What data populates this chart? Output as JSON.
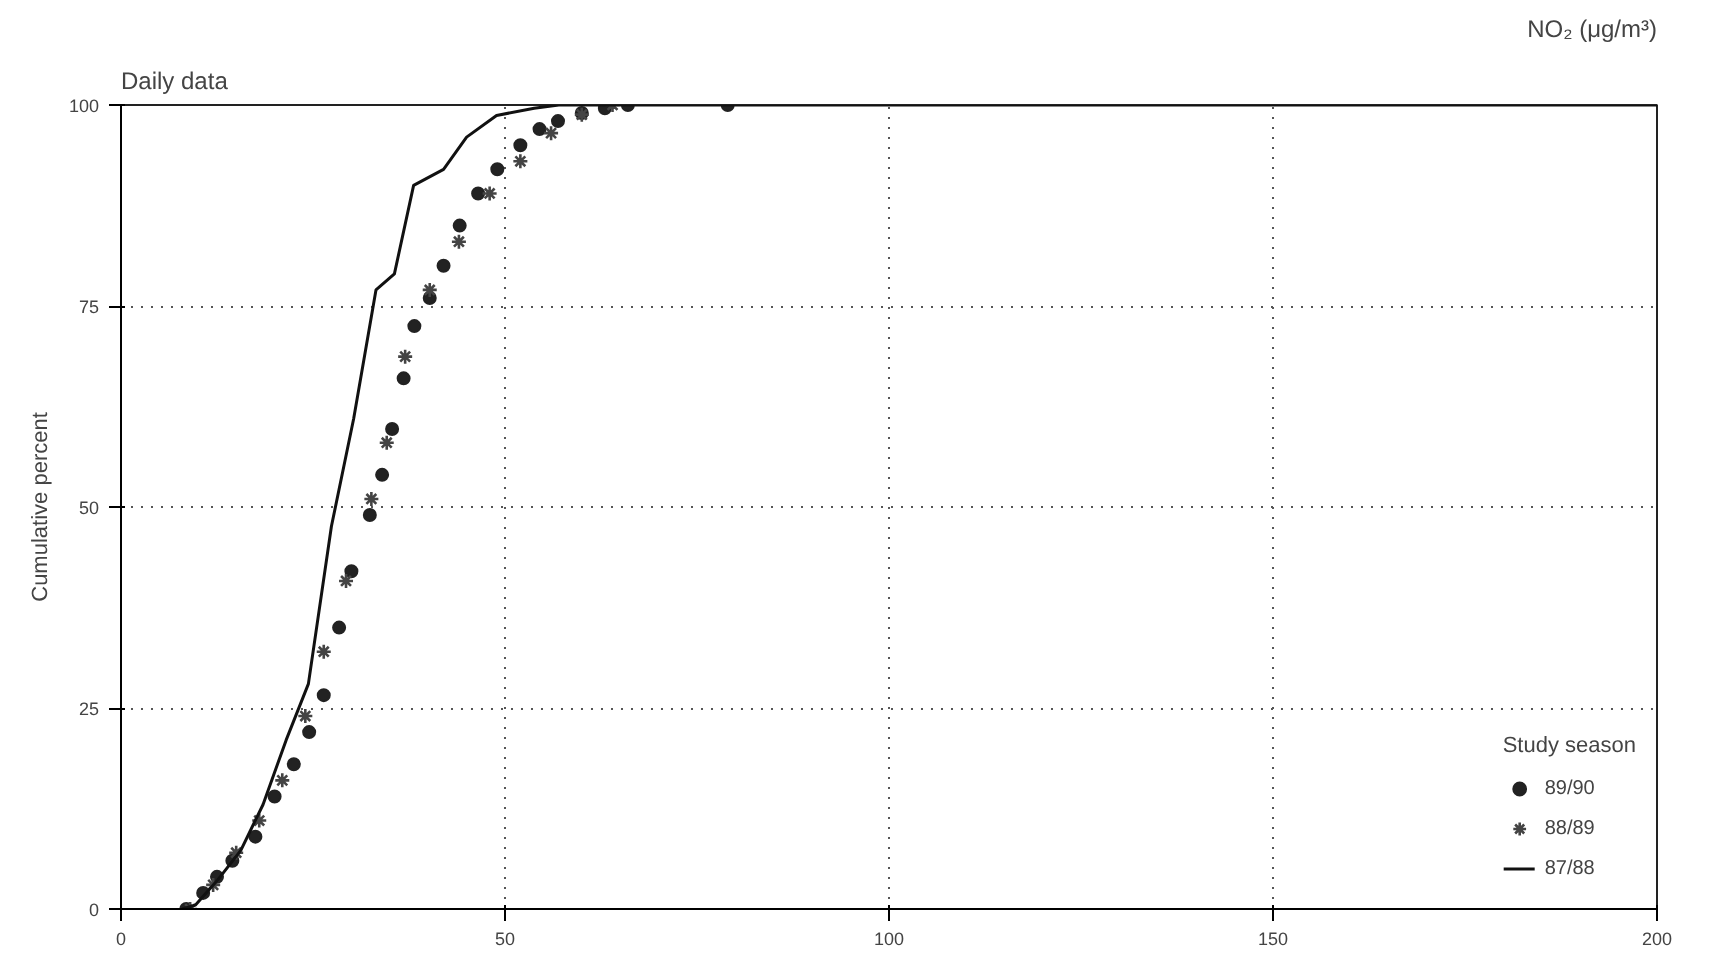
{
  "chart_data": {
    "type": "scatter",
    "title": "Daily data",
    "xlabel": "NO₂ (μg/m³)",
    "ylabel": "Cumulative percent",
    "legend_title": "Study season",
    "xlim": [
      0,
      200
    ],
    "ylim": [
      0,
      100
    ],
    "xticks": [
      0,
      50,
      100,
      150,
      200
    ],
    "yticks": [
      0,
      25,
      50,
      75,
      100
    ],
    "grid": true,
    "legend": "bottom right",
    "series": [
      {
        "name": "89/90",
        "marker": "circle",
        "color": "#222222",
        "x": [
          8.5,
          10.7,
          12.5,
          14.5,
          17.5,
          20,
          22.5,
          24.5,
          26.4,
          28.4,
          30,
          32.4,
          34,
          35.3,
          36.8,
          38.2,
          40.2,
          42,
          44.1,
          46.5,
          49,
          52,
          54.5,
          56.9,
          60,
          63,
          66,
          79
        ],
        "values": [
          0,
          2,
          4,
          6,
          9,
          14,
          18,
          22,
          26.6,
          35,
          42,
          49,
          54,
          59.7,
          66,
          72.5,
          76,
          80,
          85,
          89,
          92,
          95,
          97,
          98,
          99,
          99.6,
          100,
          100
        ]
      },
      {
        "name": "88/89",
        "marker": "cross",
        "color": "#444444",
        "x": [
          9,
          12,
          15,
          18,
          21,
          24,
          26.4,
          29.3,
          32.6,
          34.6,
          37,
          40.2,
          44,
          48,
          52,
          56,
          60,
          64
        ],
        "values": [
          0,
          3,
          7,
          11,
          16,
          24,
          32,
          40.8,
          51,
          58,
          68.7,
          77,
          83,
          89,
          93,
          96.5,
          98.8,
          100
        ]
      },
      {
        "name": "87/88",
        "type": "line",
        "line_style": "solid",
        "color": "#111111",
        "x": [
          8,
          9.7,
          12.5,
          15.6,
          18.5,
          21.5,
          24.4,
          27.4,
          30.3,
          33.2,
          35.6,
          38.1,
          42,
          45,
          48.9,
          53.8,
          57,
          200
        ],
        "values": [
          0,
          0.5,
          3.5,
          7.3,
          13,
          21,
          28,
          47.6,
          61,
          77,
          79,
          90,
          92,
          96,
          98.7,
          99.6,
          100,
          100
        ]
      }
    ]
  }
}
